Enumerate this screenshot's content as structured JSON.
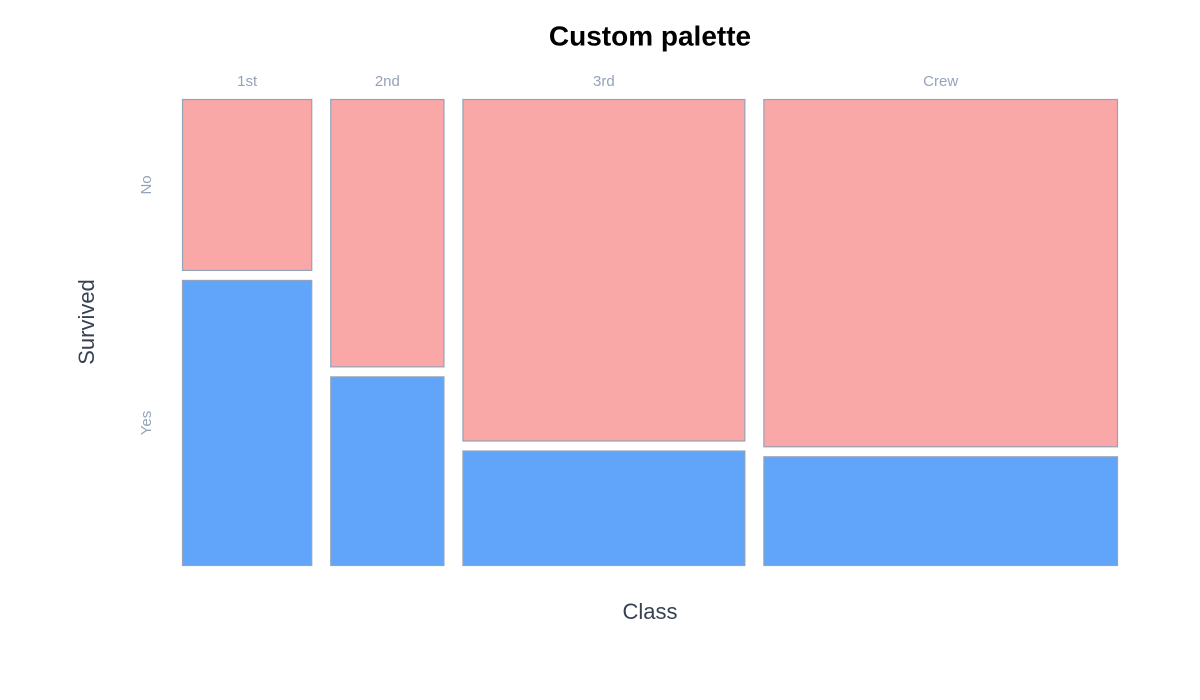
{
  "chart_data": {
    "type": "mosaic",
    "title": "Custom palette",
    "x_label": "Class",
    "y_label": "Survived",
    "categories": [
      "1st",
      "2nd",
      "3rd",
      "Crew"
    ],
    "series": [
      {
        "name": "No",
        "color": "#f9a7a7",
        "values": [
          122,
          167,
          528,
          673
        ]
      },
      {
        "name": "Yes",
        "color": "#60a5fa",
        "values": [
          203,
          118,
          178,
          212
        ]
      }
    ]
  }
}
